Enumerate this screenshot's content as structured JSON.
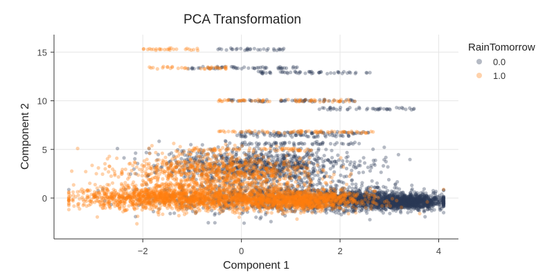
{
  "chart_data": {
    "type": "scatter",
    "title": "PCA Transformation",
    "xlabel": "Component 1",
    "ylabel": "Component 2",
    "xlim": [
      -3.8,
      4.4
    ],
    "ylim": [
      -4.2,
      16.8
    ],
    "xticks": [
      -2,
      0,
      2,
      4
    ],
    "yticks": [
      0,
      5,
      10,
      15
    ],
    "xtick_labels": [
      "−2",
      "0",
      "2",
      "4"
    ],
    "ytick_labels": [
      "0",
      "5",
      "10",
      "15"
    ],
    "grid": true,
    "legend": {
      "title": "RainTomorrow",
      "placement": "right",
      "entries": [
        "0.0",
        "1.0"
      ]
    },
    "series": [
      {
        "name": "0.0",
        "color": "#2c3a57",
        "opacity": 0.35,
        "bands": [
          {
            "y": 15.3,
            "x_start": -0.5,
            "x_end": 0.9
          },
          {
            "y": 13.4,
            "x_start": -1.2,
            "x_end": 1.2
          },
          {
            "y": 12.9,
            "x_start": 0.3,
            "x_end": 2.7
          },
          {
            "y": 10.0,
            "x_start": -0.3,
            "x_end": 2.4
          },
          {
            "y": 9.2,
            "x_start": 1.5,
            "x_end": 3.5
          },
          {
            "y": 6.7,
            "x_start": -0.2,
            "x_end": 2.6
          },
          {
            "y": 6.4,
            "x_start": -0.1,
            "x_end": 2.2
          },
          {
            "y": 5.6,
            "x_start": 0.0,
            "x_end": 2.4
          }
        ],
        "clusters": [
          {
            "cx": 0.8,
            "cy": 0.0,
            "sx": 1.3,
            "sy": 0.75
          },
          {
            "cx": 2.4,
            "cy": -0.2,
            "sx": 0.7,
            "sy": 0.5
          },
          {
            "cx": 3.4,
            "cy": -0.4,
            "sx": 0.35,
            "sy": 0.35
          },
          {
            "cx": 0.4,
            "cy": 3.3,
            "sx": 1.0,
            "sy": 0.9
          }
        ]
      },
      {
        "name": "1.0",
        "color": "#ff7f0e",
        "opacity": 0.35,
        "bands": [
          {
            "y": 15.3,
            "x_start": -2.0,
            "x_end": -0.8
          },
          {
            "y": 13.4,
            "x_start": -1.9,
            "x_end": -0.3
          },
          {
            "y": 10.0,
            "x_start": -0.5,
            "x_end": 2.3
          },
          {
            "y": 6.8,
            "x_start": -0.5,
            "x_end": 2.7
          },
          {
            "y": 5.0,
            "x_start": -1.0,
            "x_end": 1.5
          }
        ],
        "clusters": [
          {
            "cx": -1.6,
            "cy": 0.0,
            "sx": 0.9,
            "sy": 0.55
          },
          {
            "cx": -0.2,
            "cy": 0.0,
            "sx": 1.2,
            "sy": 0.7
          },
          {
            "cx": -0.6,
            "cy": 2.6,
            "sx": 1.0,
            "sy": 1.0
          },
          {
            "cx": 1.2,
            "cy": -0.2,
            "sx": 0.6,
            "sy": 0.45
          }
        ]
      }
    ]
  }
}
